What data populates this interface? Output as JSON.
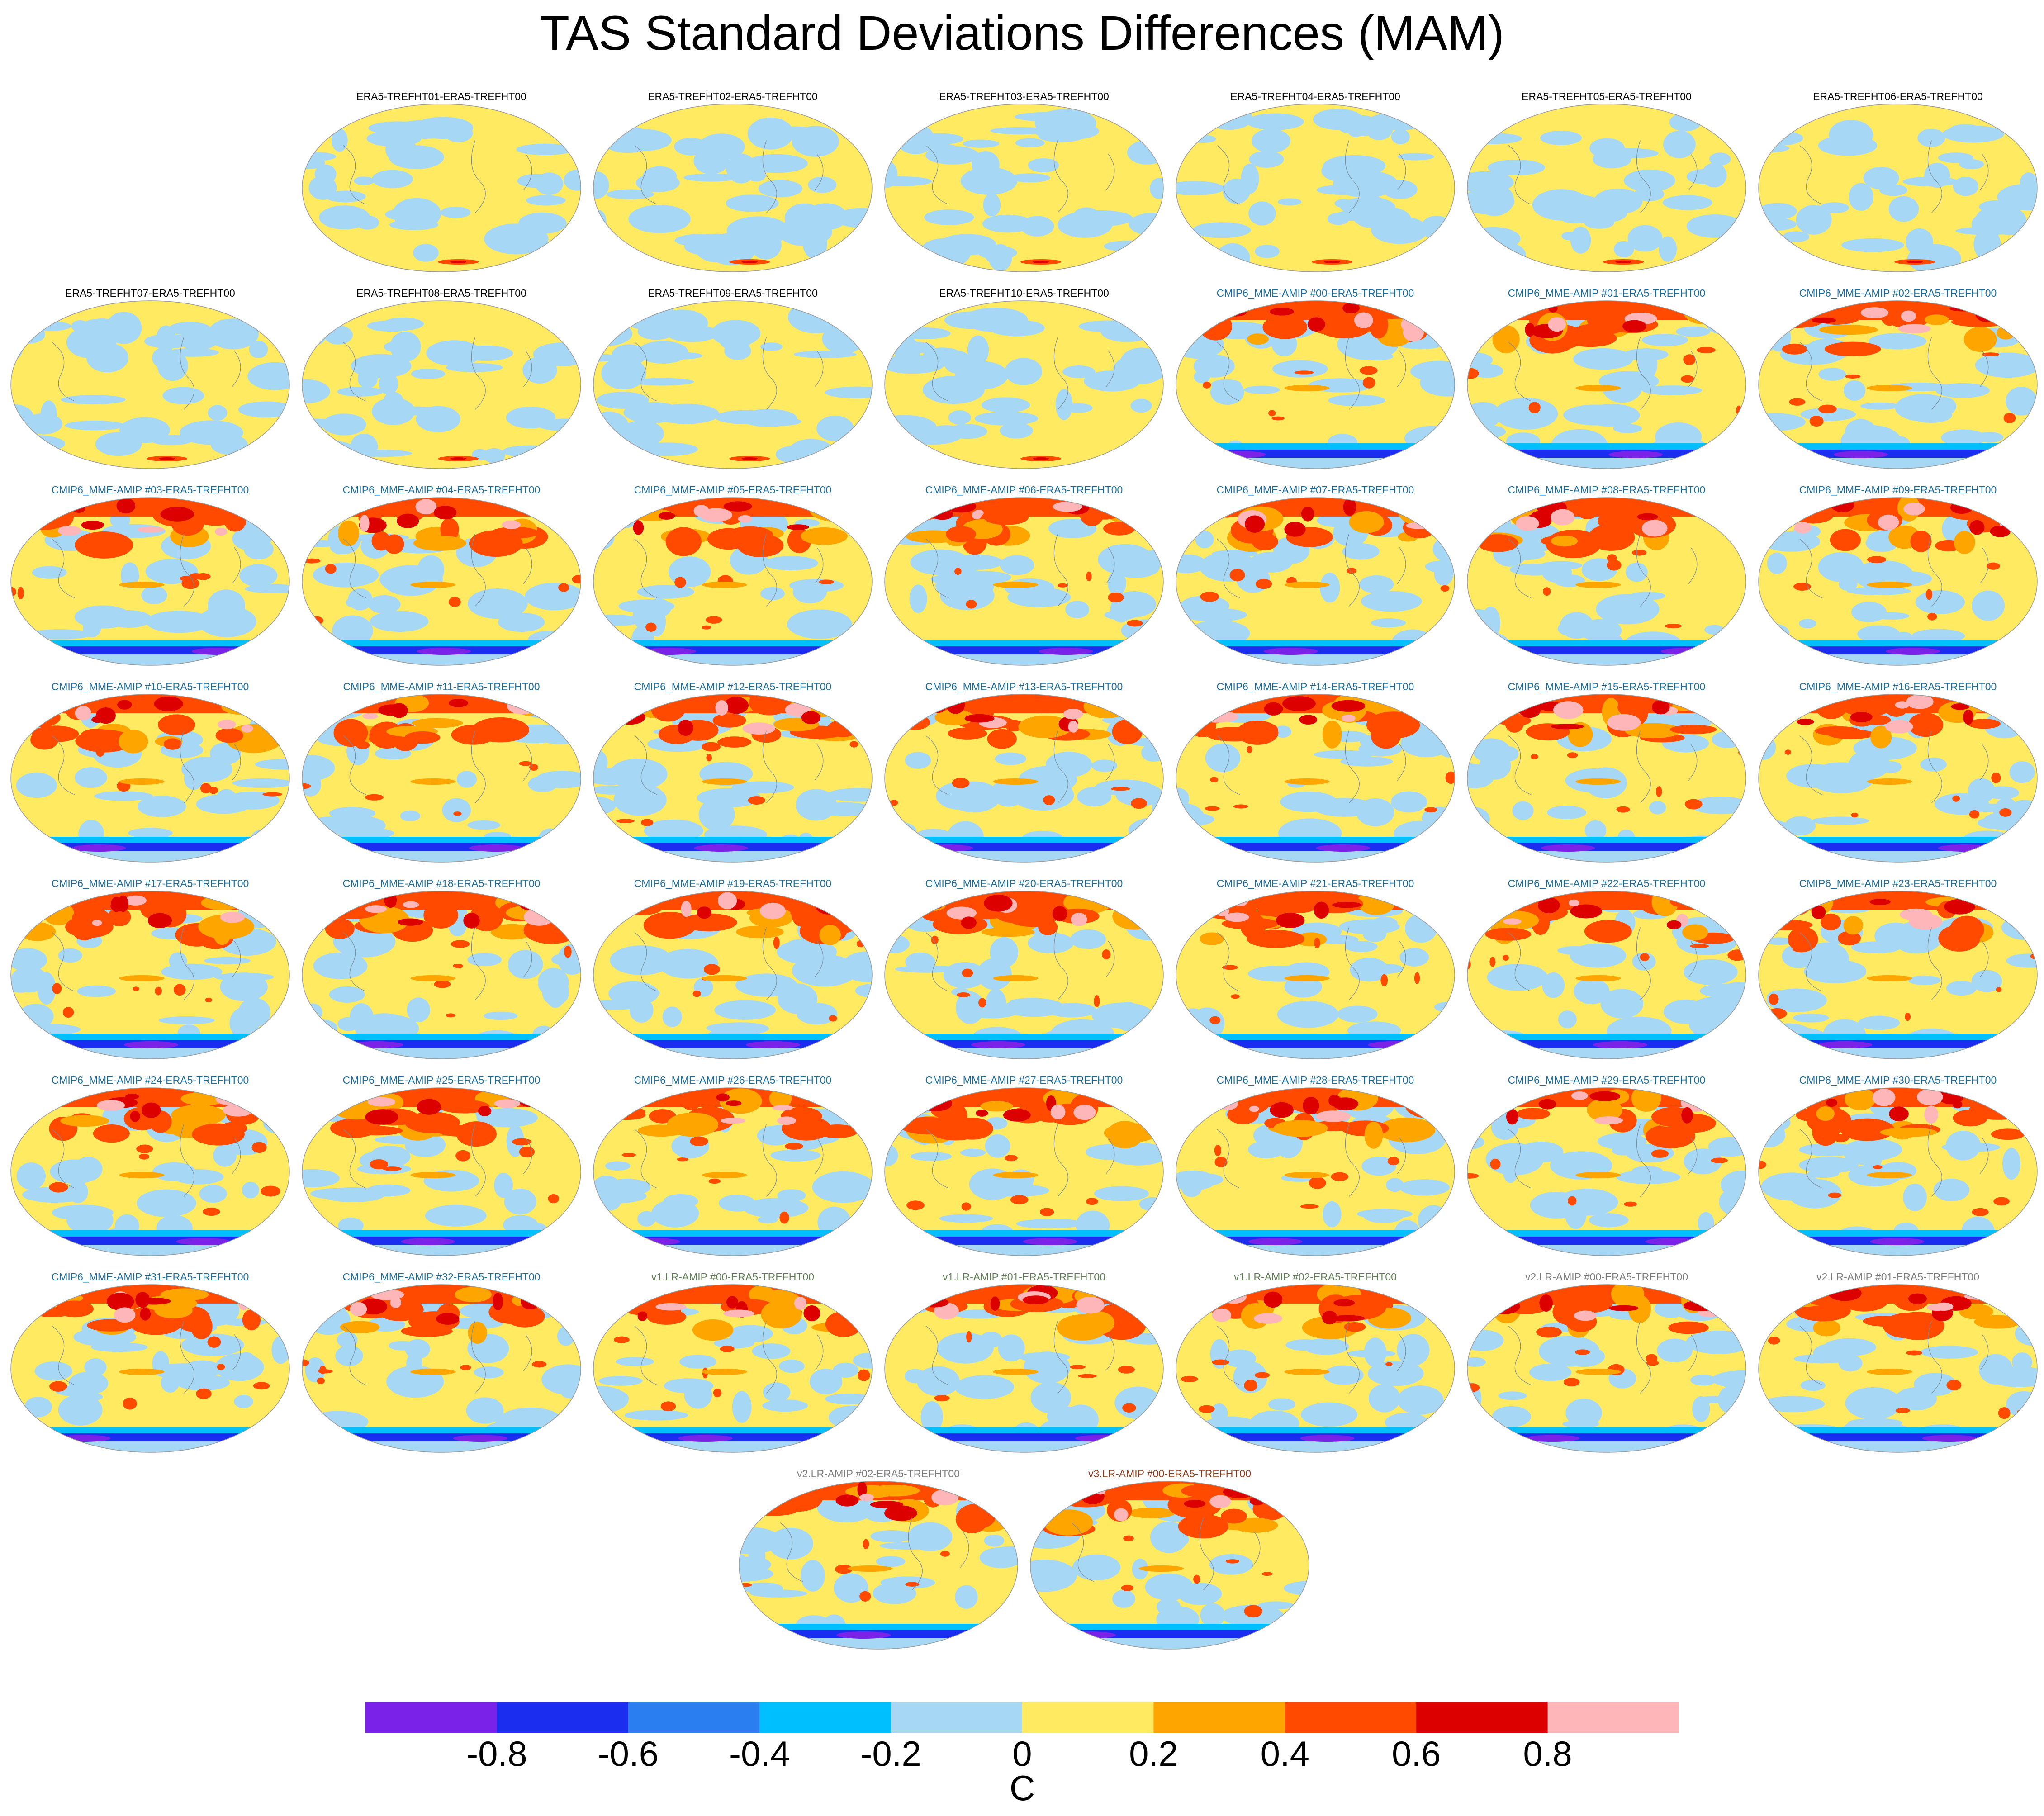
{
  "title": "TAS Standard Deviations Differences (MAM)",
  "panels": [
    {
      "label": "ERA5-TREFHT01-ERA5-TREFHT00",
      "color": "#000000",
      "style": "era"
    },
    {
      "label": "ERA5-TREFHT02-ERA5-TREFHT00",
      "color": "#000000",
      "style": "era"
    },
    {
      "label": "ERA5-TREFHT03-ERA5-TREFHT00",
      "color": "#000000",
      "style": "era"
    },
    {
      "label": "ERA5-TREFHT04-ERA5-TREFHT00",
      "color": "#000000",
      "style": "era"
    },
    {
      "label": "ERA5-TREFHT05-ERA5-TREFHT00",
      "color": "#000000",
      "style": "era"
    },
    {
      "label": "ERA5-TREFHT06-ERA5-TREFHT00",
      "color": "#000000",
      "style": "era"
    },
    {
      "label": "ERA5-TREFHT07-ERA5-TREFHT00",
      "color": "#000000",
      "style": "era"
    },
    {
      "label": "ERA5-TREFHT08-ERA5-TREFHT00",
      "color": "#000000",
      "style": "era"
    },
    {
      "label": "ERA5-TREFHT09-ERA5-TREFHT00",
      "color": "#000000",
      "style": "era"
    },
    {
      "label": "ERA5-TREFHT10-ERA5-TREFHT00",
      "color": "#000000",
      "style": "era"
    },
    {
      "label": "CMIP6_MME-AMIP  #00-ERA5-TREFHT00",
      "color": "#1a6a9a",
      "style": "model"
    },
    {
      "label": "CMIP6_MME-AMIP  #01-ERA5-TREFHT00",
      "color": "#1a6a9a",
      "style": "model"
    },
    {
      "label": "CMIP6_MME-AMIP  #02-ERA5-TREFHT00",
      "color": "#1a6a9a",
      "style": "model"
    },
    {
      "label": "CMIP6_MME-AMIP  #03-ERA5-TREFHT00",
      "color": "#1a6a9a",
      "style": "model"
    },
    {
      "label": "CMIP6_MME-AMIP  #04-ERA5-TREFHT00",
      "color": "#1a6a9a",
      "style": "model"
    },
    {
      "label": "CMIP6_MME-AMIP  #05-ERA5-TREFHT00",
      "color": "#1a6a9a",
      "style": "model"
    },
    {
      "label": "CMIP6_MME-AMIP  #06-ERA5-TREFHT00",
      "color": "#1a6a9a",
      "style": "model"
    },
    {
      "label": "CMIP6_MME-AMIP  #07-ERA5-TREFHT00",
      "color": "#1a6a9a",
      "style": "model"
    },
    {
      "label": "CMIP6_MME-AMIP  #08-ERA5-TREFHT00",
      "color": "#1a6a9a",
      "style": "model"
    },
    {
      "label": "CMIP6_MME-AMIP  #09-ERA5-TREFHT00",
      "color": "#1a6a9a",
      "style": "model"
    },
    {
      "label": "CMIP6_MME-AMIP  #10-ERA5-TREFHT00",
      "color": "#1a6a9a",
      "style": "model"
    },
    {
      "label": "CMIP6_MME-AMIP  #11-ERA5-TREFHT00",
      "color": "#1a6a9a",
      "style": "model"
    },
    {
      "label": "CMIP6_MME-AMIP  #12-ERA5-TREFHT00",
      "color": "#1a6a9a",
      "style": "model"
    },
    {
      "label": "CMIP6_MME-AMIP  #13-ERA5-TREFHT00",
      "color": "#1a6a9a",
      "style": "model"
    },
    {
      "label": "CMIP6_MME-AMIP  #14-ERA5-TREFHT00",
      "color": "#1a6a9a",
      "style": "model"
    },
    {
      "label": "CMIP6_MME-AMIP  #15-ERA5-TREFHT00",
      "color": "#1a6a9a",
      "style": "model"
    },
    {
      "label": "CMIP6_MME-AMIP  #16-ERA5-TREFHT00",
      "color": "#1a6a9a",
      "style": "model"
    },
    {
      "label": "CMIP6_MME-AMIP  #17-ERA5-TREFHT00",
      "color": "#1a6a9a",
      "style": "model"
    },
    {
      "label": "CMIP6_MME-AMIP  #18-ERA5-TREFHT00",
      "color": "#1a6a9a",
      "style": "model"
    },
    {
      "label": "CMIP6_MME-AMIP  #19-ERA5-TREFHT00",
      "color": "#1a6a9a",
      "style": "model"
    },
    {
      "label": "CMIP6_MME-AMIP  #20-ERA5-TREFHT00",
      "color": "#1a6a9a",
      "style": "model"
    },
    {
      "label": "CMIP6_MME-AMIP  #21-ERA5-TREFHT00",
      "color": "#1a6a9a",
      "style": "model"
    },
    {
      "label": "CMIP6_MME-AMIP  #22-ERA5-TREFHT00",
      "color": "#1a6a9a",
      "style": "model"
    },
    {
      "label": "CMIP6_MME-AMIP  #23-ERA5-TREFHT00",
      "color": "#1a6a9a",
      "style": "model"
    },
    {
      "label": "CMIP6_MME-AMIP  #24-ERA5-TREFHT00",
      "color": "#1a6a9a",
      "style": "model"
    },
    {
      "label": "CMIP6_MME-AMIP  #25-ERA5-TREFHT00",
      "color": "#1a6a9a",
      "style": "model"
    },
    {
      "label": "CMIP6_MME-AMIP  #26-ERA5-TREFHT00",
      "color": "#1a6a9a",
      "style": "model"
    },
    {
      "label": "CMIP6_MME-AMIP  #27-ERA5-TREFHT00",
      "color": "#1a6a9a",
      "style": "model"
    },
    {
      "label": "CMIP6_MME-AMIP  #28-ERA5-TREFHT00",
      "color": "#1a6a9a",
      "style": "model"
    },
    {
      "label": "CMIP6_MME-AMIP  #29-ERA5-TREFHT00",
      "color": "#1a6a9a",
      "style": "model"
    },
    {
      "label": "CMIP6_MME-AMIP  #30-ERA5-TREFHT00",
      "color": "#1a6a9a",
      "style": "model"
    },
    {
      "label": "CMIP6_MME-AMIP  #31-ERA5-TREFHT00",
      "color": "#1a6a9a",
      "style": "model"
    },
    {
      "label": "CMIP6_MME-AMIP  #32-ERA5-TREFHT00",
      "color": "#1a6a9a",
      "style": "model"
    },
    {
      "label": "v1.LR-AMIP  #00-ERA5-TREFHT00",
      "color": "#5d7a52",
      "style": "model"
    },
    {
      "label": "v1.LR-AMIP  #01-ERA5-TREFHT00",
      "color": "#5d7a52",
      "style": "model"
    },
    {
      "label": "v1.LR-AMIP  #02-ERA5-TREFHT00",
      "color": "#5d7a52",
      "style": "model"
    },
    {
      "label": "v2.LR-AMIP  #00-ERA5-TREFHT00",
      "color": "#7a7a7a",
      "style": "model"
    },
    {
      "label": "v2.LR-AMIP  #01-ERA5-TREFHT00",
      "color": "#7a7a7a",
      "style": "model"
    },
    {
      "label": "v2.LR-AMIP  #02-ERA5-TREFHT00",
      "color": "#7a7a7a",
      "style": "model"
    },
    {
      "label": "v3.LR-AMIP  #00-ERA5-TREFHT00",
      "color": "#8a3a1a",
      "style": "model"
    }
  ],
  "colorbar": {
    "colors": [
      "#7b22e8",
      "#1b2ef0",
      "#2a7ef0",
      "#00bfff",
      "#a6d8f5",
      "#ffea62",
      "#ffa500",
      "#ff4a00",
      "#dd0000",
      "#ffb6b8"
    ],
    "tick_labels": [
      "-0.8",
      "-0.6",
      "-0.4",
      "-0.2",
      "0",
      "0.2",
      "0.4",
      "0.6",
      "0.8"
    ],
    "unit": "C"
  }
}
